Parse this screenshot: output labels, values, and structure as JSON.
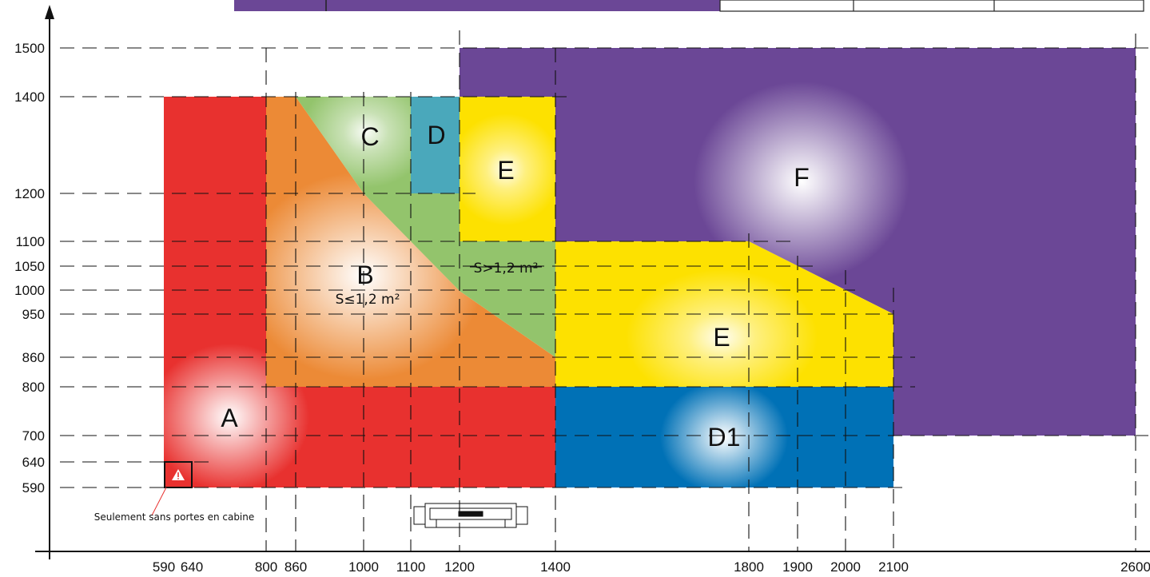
{
  "y_axis": {
    "ticks": [
      {
        "value": 1500,
        "label": "1500"
      },
      {
        "value": 1400,
        "label": "1400"
      },
      {
        "value": 1200,
        "label": "1200"
      },
      {
        "value": 1100,
        "label": "1100"
      },
      {
        "value": 1050,
        "label": "1050"
      },
      {
        "value": 1000,
        "label": "1000"
      },
      {
        "value": 950,
        "label": "950"
      },
      {
        "value": 860,
        "label": "860"
      },
      {
        "value": 800,
        "label": "800"
      },
      {
        "value": 700,
        "label": "700"
      },
      {
        "value": 640,
        "label": "640"
      },
      {
        "value": 590,
        "label": "590"
      }
    ]
  },
  "x_axis": {
    "ticks": [
      {
        "value": 590,
        "label": "590"
      },
      {
        "value": 640,
        "label": "640"
      },
      {
        "value": 800,
        "label": "800"
      },
      {
        "value": 860,
        "label": "860"
      },
      {
        "value": 1000,
        "label": "1000"
      },
      {
        "value": 1100,
        "label": "1100"
      },
      {
        "value": 1200,
        "label": "1200"
      },
      {
        "value": 1400,
        "label": "1400"
      },
      {
        "value": 1800,
        "label": "1800"
      },
      {
        "value": 1900,
        "label": "1900"
      },
      {
        "value": 2000,
        "label": "2000"
      },
      {
        "value": 2100,
        "label": "2100"
      },
      {
        "value": 2600,
        "label": "2600"
      }
    ]
  },
  "zones": {
    "a": {
      "label": "A",
      "color": "#e8312f"
    },
    "b": {
      "label": "B",
      "note": "S≤1,2 m²",
      "color": "#ec8a36"
    },
    "c": {
      "label": "C",
      "color": "#93c46c"
    },
    "d": {
      "label": "D",
      "color": "#4aa8bb"
    },
    "e_upper": {
      "label": "E",
      "color": "#fde100"
    },
    "e_lower": {
      "label": "E",
      "color": "#fde100"
    },
    "e_note": {
      "text": "S>1,2 m²"
    },
    "d1": {
      "label": "D1",
      "color": "#0071b6"
    },
    "f": {
      "label": "F",
      "color": "#6b4796"
    }
  },
  "warning": {
    "text": "Seulement sans portes en cabine",
    "icon": "warning-triangle-icon"
  },
  "cabin_icon": "cabin-door-icon"
}
